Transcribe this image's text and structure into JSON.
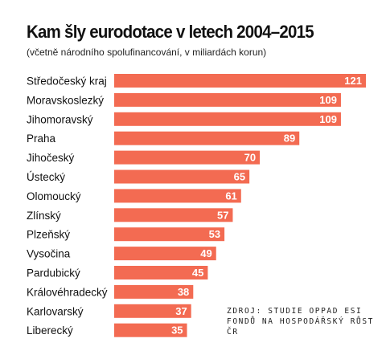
{
  "title": "Kam šly eurodotace v letech 2004–2015",
  "subtitle": "(včetně národního spolufinancování, v miliardách korun)",
  "source": "ZDROJ: STUDIE OPPAD ESI FONDŮ NA HOSPODÁŘSKÝ RŮST ČR",
  "colors": {
    "bar": "#f36b52",
    "value_label": "#ffffff",
    "category_label": "#111111"
  },
  "chart_data": {
    "type": "bar",
    "orientation": "horizontal",
    "categories": [
      "Středočeský kraj",
      "Moravskoslezký",
      "Jihomoravský",
      "Praha",
      "Jihočeský",
      "Ústecký",
      "Olomoucký",
      "Zlínský",
      "Plzeňský",
      "Vysočina",
      "Pardubický",
      "Královéhradecký",
      "Karlovarský",
      "Liberecký"
    ],
    "values": [
      121,
      109,
      109,
      89,
      70,
      65,
      61,
      57,
      53,
      49,
      45,
      38,
      37,
      35
    ],
    "data_labels": true,
    "xlim": [
      0,
      121
    ],
    "grid": false,
    "legend": "none"
  }
}
